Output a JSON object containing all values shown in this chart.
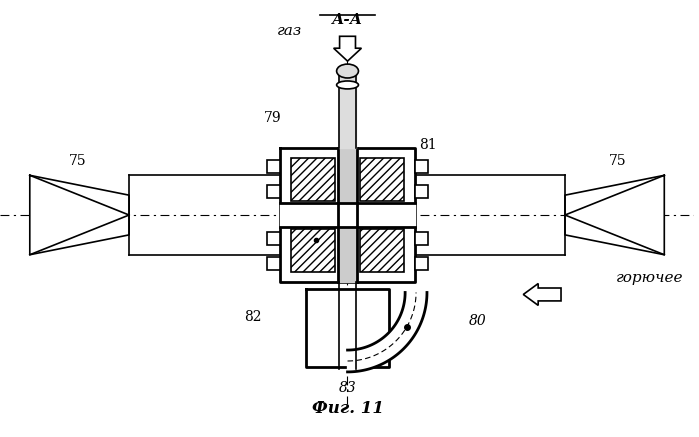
{
  "title": "Фиг. 11",
  "label_aa": "А-А",
  "label_gaz": "газ",
  "label_goryuchee": "горючее",
  "label_75_left": "75",
  "label_75_right": "75",
  "label_79": "79",
  "label_80": "80",
  "label_81": "81",
  "label_82": "82",
  "label_83": "83",
  "bg_color": "#ffffff",
  "line_color": "#000000"
}
